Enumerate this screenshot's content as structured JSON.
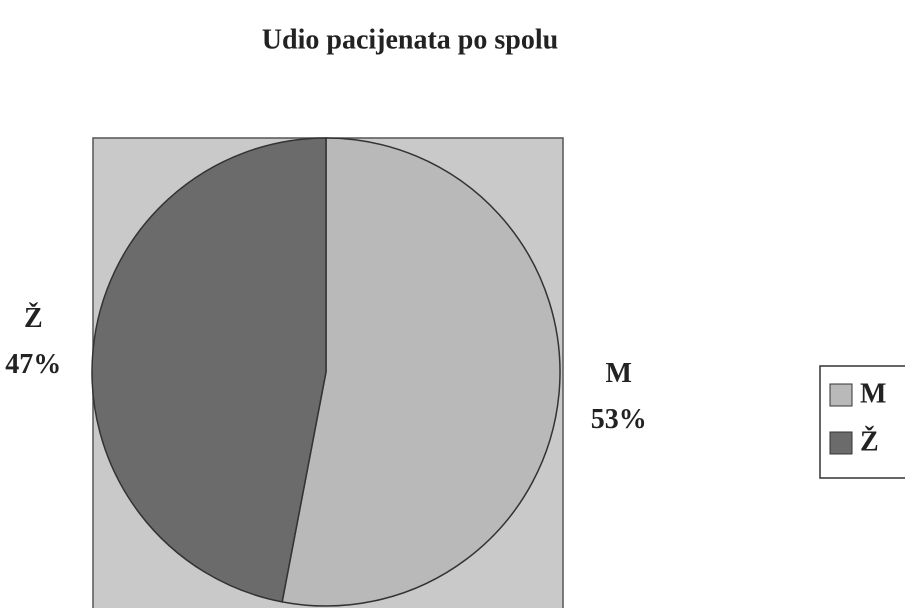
{
  "chart_data": {
    "type": "pie",
    "title": "Udio pacijenata po spolu",
    "categories": [
      "M",
      "Ž"
    ],
    "values": [
      53,
      47
    ],
    "value_labels": [
      "53%",
      "47%"
    ],
    "colors": [
      "#b9b9b9",
      "#6b6b6b"
    ],
    "legend": "right"
  }
}
